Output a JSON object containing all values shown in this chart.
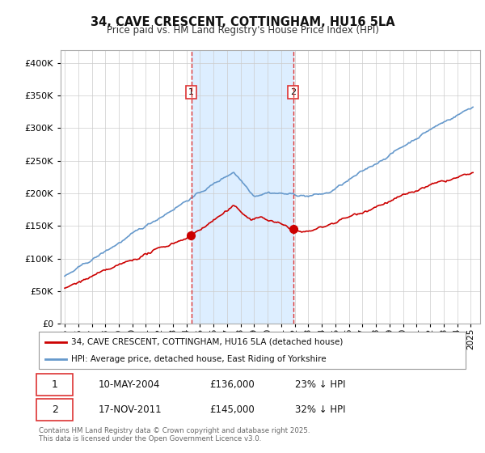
{
  "title": "34, CAVE CRESCENT, COTTINGHAM, HU16 5LA",
  "subtitle": "Price paid vs. HM Land Registry's House Price Index (HPI)",
  "red_label": "34, CAVE CRESCENT, COTTINGHAM, HU16 5LA (detached house)",
  "blue_label": "HPI: Average price, detached house, East Riding of Yorkshire",
  "transaction1_date": "10-MAY-2004",
  "transaction1_price": 136000,
  "transaction1_pct": "23% ↓ HPI",
  "transaction2_date": "17-NOV-2011",
  "transaction2_price": 145000,
  "transaction2_pct": "32% ↓ HPI",
  "footnote": "Contains HM Land Registry data © Crown copyright and database right 2025.\nThis data is licensed under the Open Government Licence v3.0.",
  "ylim": [
    0,
    420000
  ],
  "yticks": [
    0,
    50000,
    100000,
    150000,
    200000,
    250000,
    300000,
    350000,
    400000
  ],
  "red_color": "#cc0000",
  "blue_color": "#6699cc",
  "vline_color": "#dd3333",
  "shaded_color": "#ddeeff",
  "grid_color": "#cccccc",
  "spine_color": "#aaaaaa"
}
